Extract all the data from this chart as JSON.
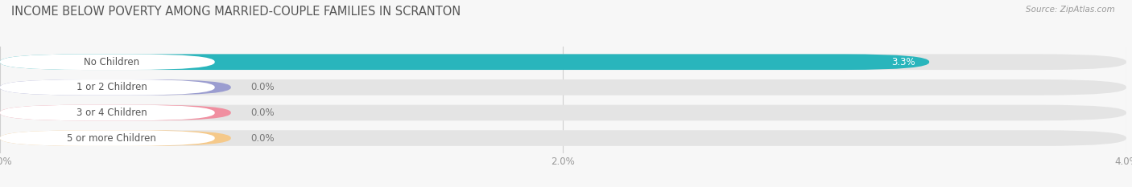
{
  "title": "INCOME BELOW POVERTY AMONG MARRIED-COUPLE FAMILIES IN SCRANTON",
  "source": "Source: ZipAtlas.com",
  "categories": [
    "No Children",
    "1 or 2 Children",
    "3 or 4 Children",
    "5 or more Children"
  ],
  "values": [
    3.3,
    0.0,
    0.0,
    0.0
  ],
  "bar_colors": [
    "#29b5bc",
    "#9b9dd0",
    "#f08fa0",
    "#f5c98a"
  ],
  "xlim_max": 4.0,
  "xticks": [
    0.0,
    2.0,
    4.0
  ],
  "xtick_labels": [
    "0.0%",
    "2.0%",
    "4.0%"
  ],
  "bar_height": 0.62,
  "fig_bg": "#f7f7f7",
  "bar_bg": "#e4e4e4",
  "title_fontsize": 10.5,
  "tick_fontsize": 8.5,
  "label_fontsize": 8.5,
  "value_fontsize": 8.5,
  "grid_color": "#d0d0d0",
  "label_text_color": "#555555",
  "value_text_color_inside": "#ffffff",
  "value_text_color_outside": "#777777"
}
